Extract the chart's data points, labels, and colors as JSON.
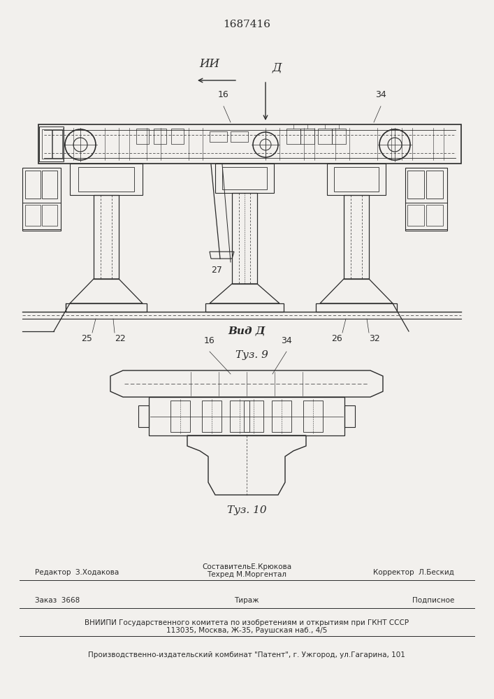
{
  "bg_color": "#f2f0ed",
  "patent_number": "1687416",
  "fig9_caption": "Τуз. 9",
  "fig10_caption": "Τуз. 10",
  "vid_d_label": "Вид Д",
  "label_II": "ИИ",
  "label_D_arrow": "Д",
  "footer_editor": "Редактор  З.Ходакова",
  "footer_sostavitel": "СоставительЕ.Крюкова",
  "footer_tehred": "Техред М.Моргентал",
  "footer_korrektor": "Корректор  Л.Бескид",
  "footer_zakaz": "Заказ  3668",
  "footer_tirazh": "Тираж",
  "footer_podpisnoe": "Подписное",
  "footer_vniip": "ВНИИПИ Государственного комитета по изобретениям и открытиям при ГКНТ СССР",
  "footer_address": "113035, Москва, Ж-35, Раушская наб., 4/5",
  "footer_patent_combine": "Производственно-издательский комбинат \"Патент\", г. Ужгород, ул.Гагарина, 101"
}
